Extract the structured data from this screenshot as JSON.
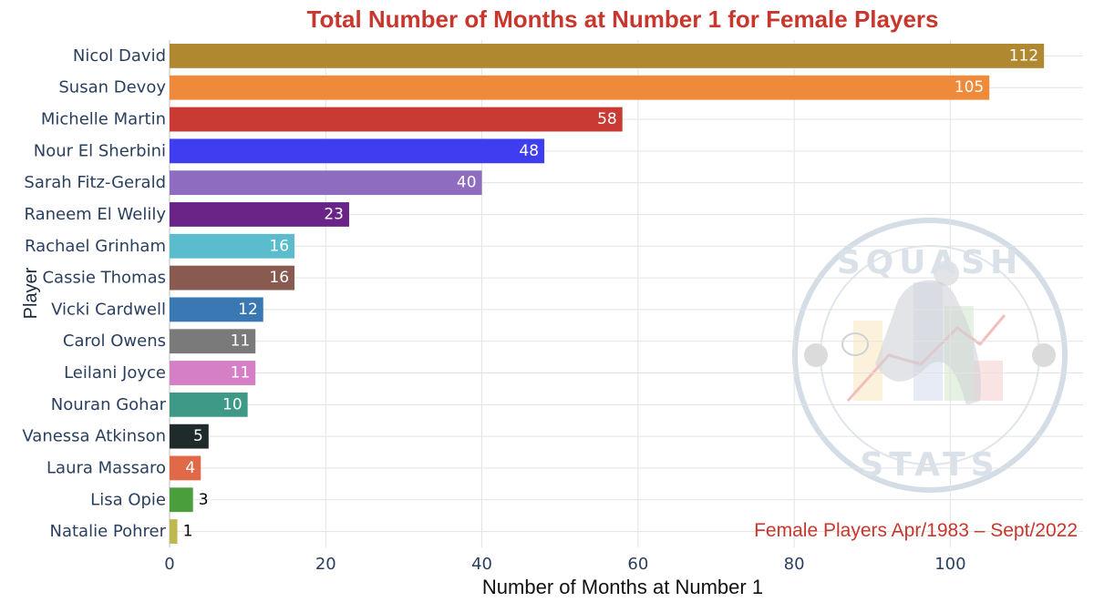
{
  "chart_data": {
    "type": "bar",
    "orientation": "horizontal",
    "title": "Total Number of Months at Number 1 for Female Players",
    "xlabel": "Number of Months at Number 1",
    "ylabel": "Player",
    "annotation": "Female Players Apr/1983 – Sept/2022",
    "xlim": [
      0,
      117
    ],
    "xticks": [
      0,
      20,
      40,
      60,
      80,
      100
    ],
    "grid": true,
    "legend": "none",
    "categories": [
      "Nicol David",
      "Susan Devoy",
      "Michelle Martin",
      "Nour El Sherbini",
      "Sarah Fitz-Gerald",
      "Raneem El Welily",
      "Rachael Grinham",
      "Cassie Thomas",
      "Vicki Cardwell",
      "Carol Owens",
      "Leilani Joyce",
      "Nouran Gohar",
      "Vanessa Atkinson",
      "Laura Massaro",
      "Lisa Opie",
      "Natalie Pohrer"
    ],
    "values": [
      112,
      105,
      58,
      48,
      40,
      23,
      16,
      16,
      12,
      11,
      11,
      10,
      5,
      4,
      3,
      1
    ],
    "colors": [
      "#B08830",
      "#EE8A3A",
      "#C83A33",
      "#3F3DF0",
      "#8E6CBF",
      "#6A2487",
      "#5BBCCD",
      "#885A50",
      "#3A78B4",
      "#7A7A7A",
      "#D47FC6",
      "#3E9A86",
      "#1F2A2A",
      "#E06A48",
      "#4B9E3C",
      "#BDB94E"
    ]
  },
  "watermark": {
    "top_text": "SQUASH",
    "bottom_text": "STATS"
  }
}
